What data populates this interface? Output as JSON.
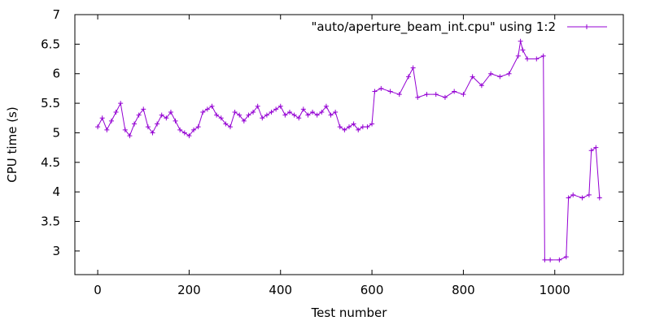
{
  "chart_data": {
    "type": "line",
    "xlabel": "Test number",
    "ylabel": "CPU time (s)",
    "xlim": [
      -50,
      1150
    ],
    "ylim": [
      2.6,
      7.0
    ],
    "x_ticks": [
      0,
      200,
      400,
      600,
      800,
      1000
    ],
    "y_ticks": [
      3,
      3.5,
      4,
      4.5,
      5,
      5.5,
      6,
      6.5,
      7
    ],
    "y_tick_labels": [
      "3",
      "3.5",
      "4",
      "4.5",
      "5",
      "5.5",
      "6",
      "6.5",
      "7"
    ],
    "grid": false,
    "legend_position": "top-right",
    "marker": "plus",
    "series": [
      {
        "name": "\"auto/aperture_beam_int.cpu\" using 1:2",
        "color": "#9400d3",
        "x": [
          0,
          10,
          20,
          30,
          40,
          50,
          60,
          70,
          80,
          90,
          100,
          110,
          120,
          130,
          140,
          150,
          160,
          170,
          180,
          190,
          200,
          210,
          220,
          230,
          240,
          250,
          260,
          270,
          280,
          290,
          300,
          310,
          320,
          330,
          340,
          350,
          360,
          370,
          380,
          390,
          400,
          410,
          420,
          430,
          440,
          450,
          460,
          470,
          480,
          490,
          500,
          510,
          520,
          530,
          540,
          550,
          560,
          570,
          580,
          590,
          600,
          606,
          620,
          640,
          660,
          680,
          690,
          700,
          720,
          740,
          760,
          780,
          800,
          820,
          840,
          860,
          880,
          900,
          920,
          925,
          930,
          940,
          960,
          975,
          978,
          990,
          1010,
          1025,
          1030,
          1040,
          1060,
          1075,
          1080,
          1090,
          1098
        ],
        "y": [
          5.1,
          5.25,
          5.05,
          5.2,
          5.35,
          5.5,
          5.05,
          4.95,
          5.15,
          5.3,
          5.4,
          5.1,
          5.0,
          5.15,
          5.3,
          5.25,
          5.35,
          5.2,
          5.05,
          5.0,
          4.95,
          5.05,
          5.1,
          5.35,
          5.4,
          5.45,
          5.3,
          5.25,
          5.15,
          5.1,
          5.35,
          5.3,
          5.2,
          5.3,
          5.35,
          5.45,
          5.25,
          5.3,
          5.35,
          5.4,
          5.45,
          5.3,
          5.35,
          5.3,
          5.25,
          5.4,
          5.3,
          5.35,
          5.3,
          5.35,
          5.45,
          5.3,
          5.35,
          5.1,
          5.05,
          5.1,
          5.15,
          5.05,
          5.1,
          5.1,
          5.15,
          5.7,
          5.75,
          5.7,
          5.65,
          5.95,
          6.1,
          5.6,
          5.65,
          5.65,
          5.6,
          5.7,
          5.65,
          5.95,
          5.8,
          6.0,
          5.95,
          6.0,
          6.3,
          6.55,
          6.4,
          6.25,
          6.25,
          6.3,
          2.85,
          2.85,
          2.85,
          2.9,
          3.9,
          3.95,
          3.9,
          3.95,
          4.7,
          4.75,
          3.9
        ]
      }
    ]
  }
}
